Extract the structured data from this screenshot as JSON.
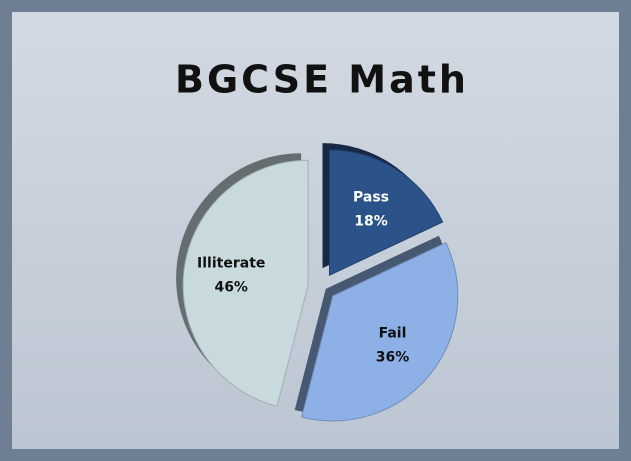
{
  "chart_data": {
    "type": "pie",
    "title": "BGCSE Math",
    "categories": [
      "Pass",
      "Fail",
      "Illiterate"
    ],
    "values": [
      18,
      36,
      46
    ],
    "value_labels": [
      "18%",
      "36%",
      "46%"
    ],
    "colors": [
      "#2b5289",
      "#8db0e6",
      "#c8dade"
    ],
    "label_colors": [
      "#ffffff",
      "#111111",
      "#111111"
    ]
  }
}
